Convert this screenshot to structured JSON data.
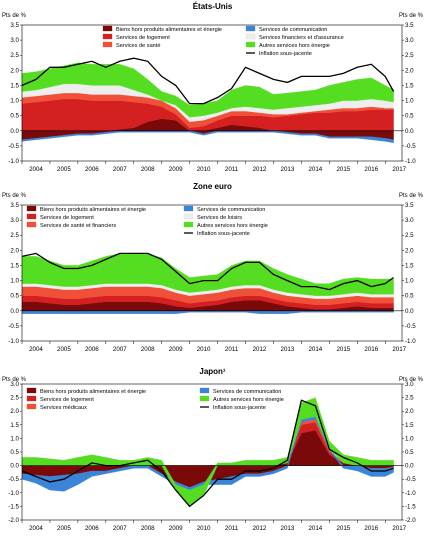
{
  "chart_data": [
    {
      "type": "area",
      "title": "États-Unis",
      "unit_left": "Pts de %",
      "unit_right": "Pts de %",
      "ylim": [
        -1.0,
        3.5
      ],
      "yticks": [
        "3.5",
        "3.0",
        "2.5",
        "2.0",
        "1.5",
        "1.0",
        "0.5",
        "0.0",
        "-0.5",
        "-1.0"
      ],
      "xticks": [
        "2004",
        "2005",
        "2006",
        "2007",
        "2008",
        "2009",
        "2010",
        "2011",
        "2012",
        "2013",
        "2014",
        "2015",
        "2016",
        "2017"
      ],
      "x_start": 2004.0,
      "x_end": 2017.6,
      "legend": [
        {
          "label": "Biens hors produits alimentaires et énergie",
          "color": "#7a0a0a"
        },
        {
          "label": "Services de logement",
          "color": "#d42020"
        },
        {
          "label": "Services de santé",
          "color": "#f05038"
        },
        {
          "label": "Services de communication",
          "color": "#3a85d8"
        },
        {
          "label": "Services financiers et d'assurance",
          "color": "#eeeeee"
        },
        {
          "label": "Autres services hors énergie",
          "color": "#55dd22"
        },
        {
          "label": "Inflation sous-jacente",
          "color": "#000000",
          "line": true
        }
      ],
      "x": [
        2004.0,
        2004.5,
        2005.0,
        2005.5,
        2006.0,
        2006.5,
        2007.0,
        2007.5,
        2008.0,
        2008.5,
        2009.0,
        2009.5,
        2010.0,
        2010.5,
        2011.0,
        2011.5,
        2012.0,
        2012.5,
        2013.0,
        2013.5,
        2014.0,
        2014.5,
        2015.0,
        2015.5,
        2016.0,
        2016.5,
        2017.0,
        2017.3
      ],
      "stacks": [
        [
          -0.3,
          -0.25,
          -0.2,
          -0.15,
          -0.1,
          -0.1,
          -0.05,
          0.05,
          0.1,
          0.3,
          0.4,
          0.35,
          0.0,
          -0.1,
          0.1,
          0.2,
          0.15,
          0.1,
          0.0,
          -0.05,
          -0.1,
          -0.1,
          -0.2,
          -0.2,
          -0.2,
          -0.2,
          -0.25,
          -0.3
        ],
        [
          0.9,
          0.95,
          1.0,
          1.05,
          1.05,
          1.0,
          1.0,
          0.95,
          0.85,
          0.6,
          0.4,
          0.2,
          0.1,
          0.15,
          0.25,
          0.3,
          0.35,
          0.4,
          0.45,
          0.5,
          0.55,
          0.6,
          0.6,
          0.65,
          0.65,
          0.7,
          0.7,
          0.7
        ],
        [
          0.2,
          0.2,
          0.2,
          0.2,
          0.2,
          0.2,
          0.2,
          0.2,
          0.2,
          0.2,
          0.2,
          0.2,
          0.2,
          0.2,
          0.15,
          0.15,
          0.15,
          0.1,
          0.1,
          0.05,
          0.05,
          0.05,
          0.1,
          0.1,
          0.1,
          0.1,
          0.05,
          0.05
        ],
        [
          -0.05,
          -0.05,
          -0.05,
          -0.05,
          -0.05,
          -0.05,
          -0.05,
          -0.05,
          -0.05,
          -0.05,
          -0.05,
          -0.05,
          -0.05,
          -0.05,
          -0.05,
          -0.05,
          -0.05,
          -0.05,
          -0.05,
          -0.05,
          -0.05,
          -0.05,
          -0.05,
          -0.05,
          -0.05,
          -0.1,
          -0.1,
          -0.1
        ],
        [
          0.2,
          0.2,
          0.25,
          0.3,
          0.3,
          0.3,
          0.3,
          0.3,
          0.2,
          0.1,
          0.0,
          0.1,
          0.15,
          0.15,
          0.1,
          0.1,
          0.15,
          0.15,
          0.15,
          0.2,
          0.2,
          0.2,
          0.2,
          0.25,
          0.25,
          0.25,
          0.25,
          0.2
        ],
        [
          0.6,
          0.6,
          0.6,
          0.6,
          0.7,
          0.7,
          0.7,
          0.7,
          0.7,
          0.5,
          0.3,
          0.3,
          0.4,
          0.4,
          0.4,
          0.6,
          0.7,
          0.7,
          0.5,
          0.5,
          0.5,
          0.5,
          0.6,
          0.6,
          0.7,
          0.7,
          0.5,
          0.4
        ]
      ],
      "line": [
        1.5,
        1.7,
        2.1,
        2.1,
        2.2,
        2.3,
        2.1,
        2.3,
        2.4,
        2.3,
        1.8,
        1.5,
        0.9,
        0.9,
        1.1,
        1.4,
        2.1,
        1.9,
        1.7,
        1.6,
        1.8,
        1.8,
        1.8,
        1.9,
        2.1,
        2.2,
        1.8,
        1.3
      ]
    },
    {
      "type": "area",
      "title": "Zone euro",
      "unit_left": "Pts de %",
      "unit_right": "Pts de %",
      "ylim": [
        -1.0,
        3.5
      ],
      "yticks": [
        "3.5",
        "3.0",
        "2.5",
        "2.0",
        "1.5",
        "1.0",
        "0.5",
        "0.0",
        "-0.5",
        "-1.0"
      ],
      "xticks": [
        "2004",
        "2005",
        "2006",
        "2007",
        "2008",
        "2009",
        "2010",
        "2011",
        "2012",
        "2013",
        "2014",
        "2015",
        "2016",
        "2017"
      ],
      "x_start": 2004.0,
      "x_end": 2017.6,
      "legend": [
        {
          "label": "Biens hors produits alimentaires et énergie",
          "color": "#7a0a0a"
        },
        {
          "label": "Services de logement",
          "color": "#d42020"
        },
        {
          "label": "Services de santé et financiers",
          "color": "#f05038"
        },
        {
          "label": "Services de communication",
          "color": "#3a85d8"
        },
        {
          "label": "Services de loisirs",
          "color": "#eeeeee"
        },
        {
          "label": "Autres services hors énergie",
          "color": "#55dd22"
        },
        {
          "label": "Inflation sous-jacente",
          "color": "#000000",
          "line": true
        }
      ],
      "x": [
        2004.0,
        2004.5,
        2005.0,
        2005.5,
        2006.0,
        2006.5,
        2007.0,
        2007.5,
        2008.0,
        2008.5,
        2009.0,
        2009.5,
        2010.0,
        2010.5,
        2011.0,
        2011.5,
        2012.0,
        2012.5,
        2013.0,
        2013.5,
        2014.0,
        2014.5,
        2015.0,
        2015.5,
        2016.0,
        2016.5,
        2017.0,
        2017.3
      ],
      "stacks": [
        [
          0.3,
          0.3,
          0.25,
          0.2,
          0.2,
          0.25,
          0.3,
          0.3,
          0.3,
          0.3,
          0.25,
          0.15,
          0.1,
          0.15,
          0.2,
          0.3,
          0.35,
          0.35,
          0.25,
          0.15,
          0.1,
          0.05,
          0.05,
          0.1,
          0.15,
          0.1,
          0.1,
          0.1
        ],
        [
          0.2,
          0.2,
          0.2,
          0.2,
          0.2,
          0.2,
          0.2,
          0.2,
          0.2,
          0.2,
          0.2,
          0.2,
          0.15,
          0.15,
          0.15,
          0.15,
          0.15,
          0.15,
          0.15,
          0.15,
          0.15,
          0.15,
          0.15,
          0.15,
          0.15,
          0.15,
          0.15,
          0.15
        ],
        [
          0.3,
          0.3,
          0.3,
          0.3,
          0.3,
          0.3,
          0.3,
          0.3,
          0.3,
          0.3,
          0.3,
          0.25,
          0.25,
          0.25,
          0.25,
          0.25,
          0.25,
          0.25,
          0.2,
          0.2,
          0.2,
          0.2,
          0.2,
          0.2,
          0.2,
          0.2,
          0.2,
          0.2
        ],
        [
          -0.1,
          -0.1,
          -0.1,
          -0.1,
          -0.1,
          -0.1,
          -0.1,
          -0.1,
          -0.1,
          -0.1,
          -0.1,
          -0.1,
          -0.05,
          -0.05,
          -0.05,
          -0.05,
          -0.05,
          -0.1,
          -0.1,
          -0.1,
          -0.05,
          -0.05,
          -0.05,
          -0.05,
          -0.05,
          -0.05,
          -0.05,
          -0.05
        ],
        [
          0.1,
          0.1,
          0.1,
          0.1,
          0.1,
          0.1,
          0.1,
          0.1,
          0.1,
          0.1,
          0.1,
          0.1,
          0.1,
          0.1,
          0.1,
          0.1,
          0.1,
          0.1,
          0.1,
          0.1,
          0.1,
          0.1,
          0.1,
          0.1,
          0.1,
          0.1,
          0.1,
          0.1
        ],
        [
          0.9,
          0.9,
          0.8,
          0.7,
          0.7,
          0.8,
          0.9,
          1.0,
          1.0,
          1.0,
          0.9,
          0.7,
          0.5,
          0.5,
          0.5,
          0.7,
          0.8,
          0.8,
          0.7,
          0.6,
          0.5,
          0.4,
          0.4,
          0.5,
          0.5,
          0.5,
          0.5,
          0.5
        ]
      ],
      "line": [
        1.8,
        1.9,
        1.6,
        1.4,
        1.4,
        1.5,
        1.7,
        1.9,
        1.9,
        1.9,
        1.7,
        1.3,
        0.9,
        1.0,
        1.0,
        1.4,
        1.6,
        1.6,
        1.2,
        1.0,
        0.8,
        0.8,
        0.7,
        0.9,
        1.0,
        0.8,
        0.9,
        1.1
      ]
    },
    {
      "type": "area",
      "title": "Japon¹",
      "unit_left": "Pts de %",
      "unit_right": "Pts de %",
      "ylim": [
        -2.0,
        3.0
      ],
      "yticks": [
        "3.0",
        "2.5",
        "2.0",
        "1.5",
        "1.0",
        "0.5",
        "0.0",
        "-0.5",
        "-1.0",
        "-1.5",
        "-2.0"
      ],
      "xticks": [
        "2004",
        "2005",
        "2006",
        "2007",
        "2008",
        "2009",
        "2010",
        "2011",
        "2012",
        "2013",
        "2014",
        "2015",
        "2016",
        "2017"
      ],
      "x_start": 2004.0,
      "x_end": 2017.6,
      "legend": [
        {
          "label": "Biens hors produits alimentaires et énergie",
          "color": "#7a0a0a"
        },
        {
          "label": "Services de logement",
          "color": "#d42020"
        },
        {
          "label": "Services médicaux",
          "color": "#f05038"
        },
        {
          "label": "Services de communication",
          "color": "#3a85d8"
        },
        {
          "label": "Autres services hors énergie",
          "color": "#55dd22"
        },
        {
          "label": "Inflation sous-jacente",
          "color": "#000000",
          "line": true
        }
      ],
      "x": [
        2004.0,
        2004.5,
        2005.0,
        2005.5,
        2006.0,
        2006.5,
        2007.0,
        2007.5,
        2008.0,
        2008.5,
        2009.0,
        2009.5,
        2010.0,
        2010.5,
        2011.0,
        2011.5,
        2012.0,
        2012.5,
        2013.0,
        2013.5,
        2014.0,
        2014.5,
        2015.0,
        2015.5,
        2016.0,
        2016.5,
        2017.0,
        2017.3
      ],
      "stacks": [
        [
          -0.3,
          -0.35,
          -0.4,
          -0.35,
          -0.3,
          -0.2,
          -0.2,
          -0.1,
          0.0,
          0.0,
          -0.3,
          -0.6,
          -0.8,
          -0.6,
          -0.5,
          -0.4,
          -0.3,
          -0.3,
          -0.2,
          0.1,
          1.2,
          1.3,
          0.4,
          0.1,
          0.0,
          -0.1,
          -0.1,
          -0.05
        ],
        [
          0.0,
          0.0,
          0.0,
          0.0,
          0.0,
          0.0,
          0.0,
          0.0,
          0.0,
          0.0,
          0.0,
          0.0,
          0.0,
          0.0,
          0.0,
          0.0,
          0.0,
          0.0,
          0.0,
          0.0,
          0.3,
          0.3,
          0.1,
          0.0,
          0.0,
          0.0,
          0.0,
          0.0
        ],
        [
          0.0,
          0.0,
          0.0,
          0.0,
          0.0,
          0.0,
          0.0,
          0.0,
          0.0,
          0.0,
          0.0,
          0.0,
          0.0,
          0.0,
          0.0,
          0.0,
          0.0,
          0.0,
          0.0,
          0.0,
          0.1,
          0.1,
          0.05,
          0.0,
          0.0,
          0.0,
          0.0,
          0.0
        ],
        [
          -0.2,
          -0.3,
          -0.5,
          -0.6,
          -0.4,
          -0.2,
          -0.1,
          -0.1,
          -0.1,
          -0.1,
          -0.1,
          -0.1,
          -0.1,
          -0.1,
          -0.2,
          -0.3,
          -0.1,
          -0.1,
          -0.1,
          -0.1,
          0.1,
          0.1,
          0.05,
          -0.1,
          -0.2,
          -0.3,
          -0.3,
          -0.2
        ],
        [
          0.3,
          0.3,
          0.25,
          0.2,
          0.3,
          0.4,
          0.3,
          0.2,
          0.2,
          0.3,
          0.2,
          -0.2,
          -0.6,
          -0.4,
          0.1,
          0.1,
          0.2,
          0.2,
          0.2,
          0.2,
          0.6,
          0.7,
          0.3,
          0.3,
          0.3,
          0.2,
          0.2,
          0.2
        ]
      ],
      "line": [
        -0.2,
        -0.4,
        -0.6,
        -0.5,
        -0.2,
        0.1,
        0.0,
        0.0,
        0.1,
        0.2,
        -0.2,
        -0.9,
        -1.5,
        -1.1,
        -0.5,
        -0.5,
        -0.2,
        -0.2,
        -0.1,
        0.2,
        2.4,
        2.2,
        0.6,
        0.3,
        0.1,
        -0.2,
        -0.2,
        -0.1
      ]
    }
  ]
}
